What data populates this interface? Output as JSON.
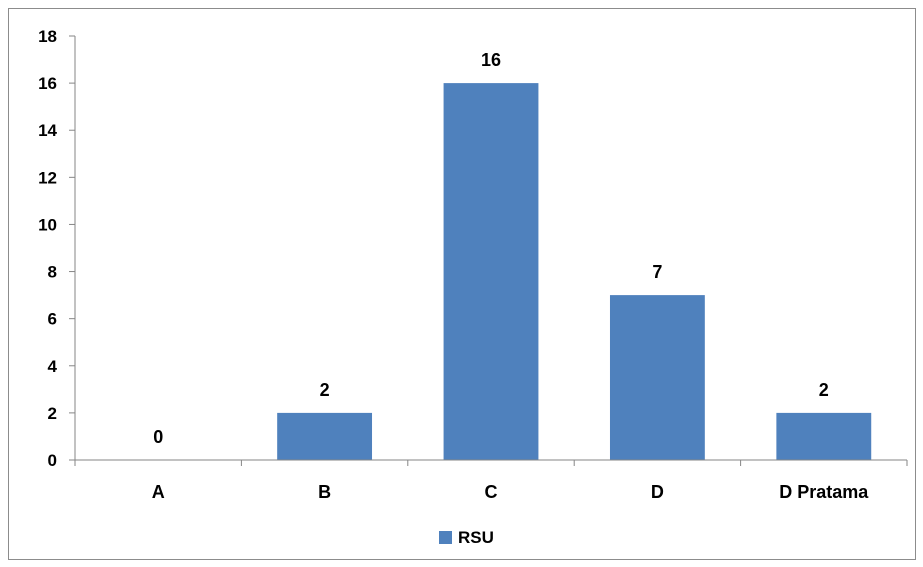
{
  "chart_data": {
    "type": "bar",
    "categories": [
      "A",
      "B",
      "C",
      "D",
      "D Pratama"
    ],
    "series": [
      {
        "name": "RSU",
        "values": [
          0,
          2,
          16,
          7,
          2
        ],
        "color": "#4F81BD"
      }
    ],
    "data_labels": [
      "0",
      "2",
      "16",
      "7",
      "2"
    ],
    "ylim": [
      0,
      18
    ],
    "yticks": [
      0,
      2,
      4,
      6,
      8,
      10,
      12,
      14,
      16,
      18
    ],
    "grid": false,
    "legend_position": "bottom",
    "title": "",
    "xlabel": "",
    "ylabel": ""
  }
}
